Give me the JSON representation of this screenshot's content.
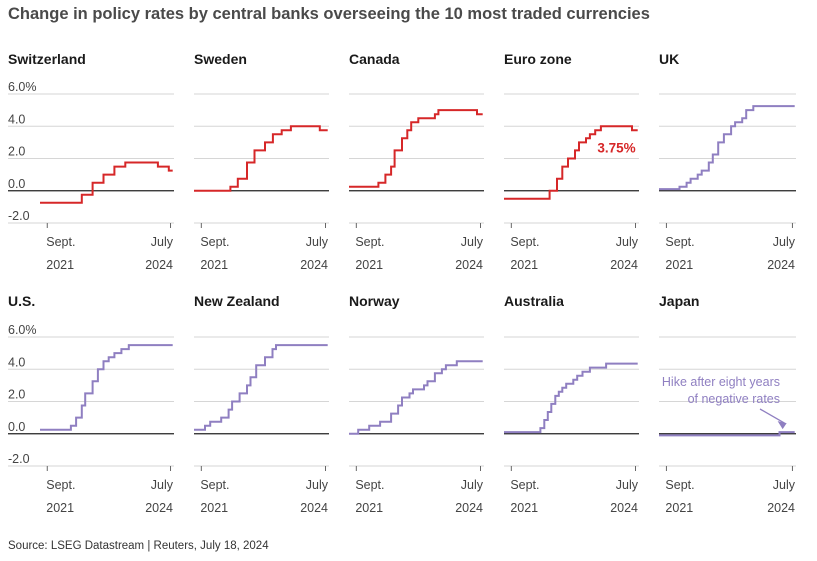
{
  "title": "Change in policy rates by central banks overseeing the 10 most traded currencies",
  "source": "Source: LSEG Datastream | Reuters, July 18, 2024",
  "colors": {
    "cut": "#d62728",
    "hold": "#8f7fc1"
  },
  "chart_data": {
    "type": "line",
    "layout": "small-multiples",
    "y_ticks": [
      "6.0%",
      "4.0",
      "2.0",
      "0.0",
      "-2.0"
    ],
    "y_tick_values": [
      6,
      4,
      2,
      0,
      -2
    ],
    "ylim": [
      -2,
      6
    ],
    "x_ticks": [
      {
        "line1": "Sept.",
        "line2": "2021",
        "value": 2021.667
      },
      {
        "line1": "July",
        "line2": "2024",
        "value": 2024.5
      }
    ],
    "xlim": [
      2021.5,
      2024.58
    ],
    "panels": [
      {
        "name": "Switzerland",
        "color": "red",
        "points": [
          [
            2021.5,
            -0.75
          ],
          [
            2022.46,
            -0.25
          ],
          [
            2022.71,
            0.5
          ],
          [
            2022.96,
            1.0
          ],
          [
            2023.21,
            1.5
          ],
          [
            2023.46,
            1.75
          ],
          [
            2024.21,
            1.5
          ],
          [
            2024.46,
            1.25
          ],
          [
            2024.55,
            1.25
          ]
        ]
      },
      {
        "name": "Sweden",
        "color": "red",
        "points": [
          [
            2021.5,
            0
          ],
          [
            2022.33,
            0.25
          ],
          [
            2022.5,
            0.75
          ],
          [
            2022.71,
            1.75
          ],
          [
            2022.88,
            2.5
          ],
          [
            2023.12,
            3.0
          ],
          [
            2023.3,
            3.5
          ],
          [
            2023.5,
            3.75
          ],
          [
            2023.71,
            4.0
          ],
          [
            2024.37,
            3.75
          ],
          [
            2024.55,
            3.75
          ]
        ]
      },
      {
        "name": "Canada",
        "color": "red",
        "points": [
          [
            2021.5,
            0.25
          ],
          [
            2022.17,
            0.5
          ],
          [
            2022.33,
            1.0
          ],
          [
            2022.46,
            1.5
          ],
          [
            2022.54,
            2.5
          ],
          [
            2022.71,
            3.25
          ],
          [
            2022.83,
            3.75
          ],
          [
            2022.92,
            4.25
          ],
          [
            2023.08,
            4.5
          ],
          [
            2023.46,
            4.75
          ],
          [
            2023.54,
            5.0
          ],
          [
            2024.42,
            4.75
          ],
          [
            2024.55,
            4.75
          ]
        ]
      },
      {
        "name": "Euro zone",
        "color": "red",
        "points": [
          [
            2021.5,
            -0.5
          ],
          [
            2022.54,
            0
          ],
          [
            2022.71,
            0.75
          ],
          [
            2022.83,
            1.5
          ],
          [
            2022.96,
            2.0
          ],
          [
            2023.12,
            2.5
          ],
          [
            2023.21,
            3.0
          ],
          [
            2023.37,
            3.25
          ],
          [
            2023.46,
            3.5
          ],
          [
            2023.58,
            3.75
          ],
          [
            2023.71,
            4.0
          ],
          [
            2024.42,
            3.75
          ],
          [
            2024.55,
            3.75
          ]
        ],
        "annotation": "3.75%"
      },
      {
        "name": "UK",
        "color": "purple",
        "points": [
          [
            2021.5,
            0.1
          ],
          [
            2021.96,
            0.25
          ],
          [
            2022.12,
            0.5
          ],
          [
            2022.21,
            0.75
          ],
          [
            2022.37,
            1.0
          ],
          [
            2022.46,
            1.25
          ],
          [
            2022.62,
            1.75
          ],
          [
            2022.71,
            2.25
          ],
          [
            2022.83,
            3.0
          ],
          [
            2022.96,
            3.5
          ],
          [
            2023.12,
            4.0
          ],
          [
            2023.21,
            4.25
          ],
          [
            2023.37,
            4.5
          ],
          [
            2023.46,
            5.0
          ],
          [
            2023.62,
            5.25
          ],
          [
            2024.55,
            5.25
          ]
        ]
      },
      {
        "name": "U.S.",
        "color": "purple",
        "points": [
          [
            2021.5,
            0.25
          ],
          [
            2022.21,
            0.5
          ],
          [
            2022.33,
            1.0
          ],
          [
            2022.46,
            1.75
          ],
          [
            2022.54,
            2.5
          ],
          [
            2022.71,
            3.25
          ],
          [
            2022.83,
            4.0
          ],
          [
            2022.96,
            4.5
          ],
          [
            2023.08,
            4.75
          ],
          [
            2023.21,
            5.0
          ],
          [
            2023.37,
            5.25
          ],
          [
            2023.54,
            5.5
          ],
          [
            2024.55,
            5.5
          ]
        ]
      },
      {
        "name": "New Zealand",
        "color": "purple",
        "points": [
          [
            2021.5,
            0.25
          ],
          [
            2021.75,
            0.5
          ],
          [
            2021.87,
            0.75
          ],
          [
            2022.12,
            1.0
          ],
          [
            2022.29,
            1.5
          ],
          [
            2022.37,
            2.0
          ],
          [
            2022.54,
            2.5
          ],
          [
            2022.71,
            3.0
          ],
          [
            2022.79,
            3.5
          ],
          [
            2022.92,
            4.25
          ],
          [
            2023.12,
            4.75
          ],
          [
            2023.29,
            5.25
          ],
          [
            2023.37,
            5.5
          ],
          [
            2024.55,
            5.5
          ]
        ]
      },
      {
        "name": "Norway",
        "color": "purple",
        "points": [
          [
            2021.5,
            0
          ],
          [
            2021.71,
            0.25
          ],
          [
            2021.96,
            0.5
          ],
          [
            2022.21,
            0.75
          ],
          [
            2022.46,
            1.25
          ],
          [
            2022.62,
            1.75
          ],
          [
            2022.71,
            2.25
          ],
          [
            2022.88,
            2.5
          ],
          [
            2022.96,
            2.75
          ],
          [
            2023.21,
            3.0
          ],
          [
            2023.29,
            3.25
          ],
          [
            2023.46,
            3.75
          ],
          [
            2023.62,
            4.0
          ],
          [
            2023.71,
            4.25
          ],
          [
            2023.96,
            4.5
          ],
          [
            2024.55,
            4.5
          ]
        ]
      },
      {
        "name": "Australia",
        "color": "purple",
        "points": [
          [
            2021.5,
            0.1
          ],
          [
            2022.33,
            0.35
          ],
          [
            2022.42,
            0.85
          ],
          [
            2022.5,
            1.35
          ],
          [
            2022.58,
            1.85
          ],
          [
            2022.67,
            2.35
          ],
          [
            2022.75,
            2.6
          ],
          [
            2022.83,
            2.85
          ],
          [
            2022.92,
            3.1
          ],
          [
            2023.08,
            3.35
          ],
          [
            2023.17,
            3.6
          ],
          [
            2023.29,
            3.85
          ],
          [
            2023.46,
            4.1
          ],
          [
            2023.83,
            4.35
          ],
          [
            2024.55,
            4.35
          ]
        ]
      },
      {
        "name": "Japan",
        "color": "purple",
        "points": [
          [
            2021.5,
            -0.1
          ],
          [
            2024.21,
            0.1
          ],
          [
            2024.55,
            0.1
          ]
        ],
        "annotation_line1": "Hike after eight years",
        "annotation_line2": "of negative rates"
      }
    ]
  }
}
